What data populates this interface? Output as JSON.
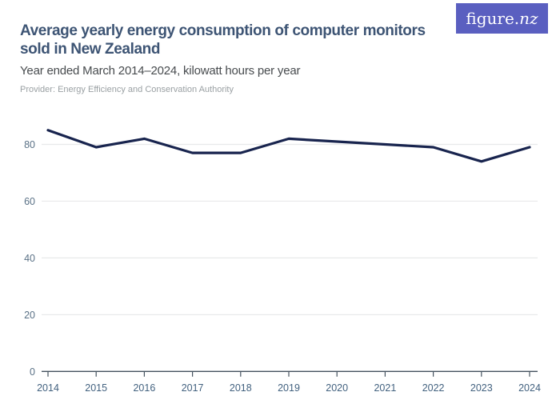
{
  "header": {
    "title": "Average yearly energy consumption of computer monitors sold in New Zealand",
    "subtitle": "Year ended March 2014–2024, kilowatt hours per year",
    "provider": "Provider: Energy Efficiency and Conservation Authority",
    "logo": {
      "text_main": "figure.",
      "text_accent": "nz"
    }
  },
  "colors": {
    "logo_bg": "#5a5fc0",
    "logo_fg": "#ffffff",
    "title_text": "#3d5474",
    "subtitle_text": "#474b4e",
    "provider_text": "#9aa0a3",
    "line": "#18244e",
    "gridline": "#e8e9ea",
    "axis": "#45525f",
    "y_tick_label": "#5a7186",
    "x_tick_label": "#42617f"
  },
  "chart_data": {
    "type": "line",
    "title": "Average yearly energy consumption of computer monitors sold in New Zealand",
    "subtitle": "Year ended March 2014–2024, kilowatt hours per year",
    "series_name": "Average yearly energy consumption of computer monitors sold",
    "categories": [
      "2014",
      "2015",
      "2016",
      "2017",
      "2018",
      "2019",
      "2020",
      "2021",
      "2022",
      "2023",
      "2024"
    ],
    "values": [
      85,
      79,
      82,
      77,
      77,
      82,
      81,
      80,
      79,
      74,
      79
    ],
    "xlabel": "Year ended March",
    "ylabel": "kilowatt hours per year",
    "ylim": [
      0,
      88
    ],
    "y_ticks": [
      0,
      20,
      40,
      60,
      80
    ],
    "grid": true,
    "legend": "none"
  }
}
